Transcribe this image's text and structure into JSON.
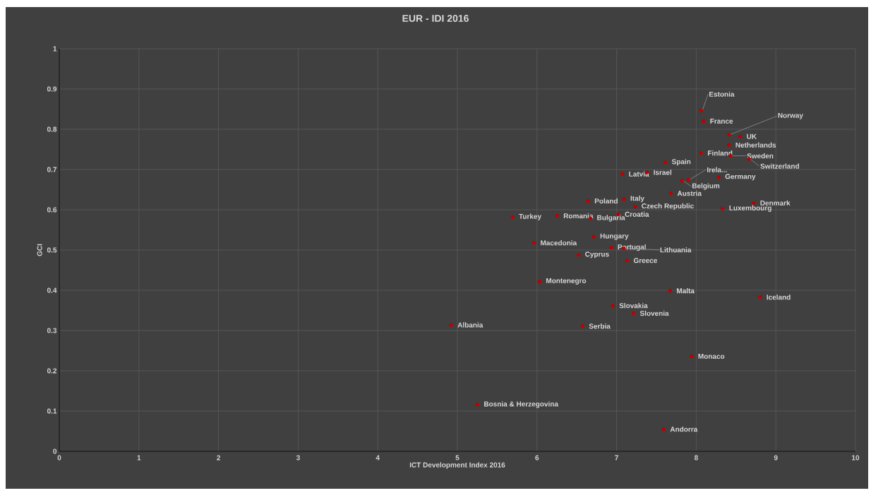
{
  "chart_data": {
    "type": "scatter",
    "title": "EUR - IDI 2016",
    "xlabel": "ICT Development Index 2016",
    "ylabel": "GCI",
    "xlim": [
      0,
      10
    ],
    "ylim": [
      0,
      1
    ],
    "xticks": [
      0,
      1,
      2,
      3,
      4,
      5,
      6,
      7,
      8,
      9,
      10
    ],
    "yticks": [
      0,
      0.1,
      0.2,
      0.3,
      0.4,
      0.5,
      0.6,
      0.7,
      0.8,
      0.9,
      1
    ],
    "grid": true,
    "series": [
      {
        "color": "#c00000",
        "x": [
          8.06,
          8.09,
          8.41,
          8.55,
          8.41,
          8.06,
          8.43,
          8.66,
          7.61,
          7.9,
          7.82,
          8.28,
          7.68,
          8.72,
          8.33,
          7.07,
          7.38,
          6.64,
          7.09,
          7.23,
          7.02,
          5.69,
          6.25,
          6.67,
          6.71,
          5.96,
          6.93,
          7.09,
          6.52,
          7.13,
          6.03,
          4.92,
          6.57,
          7.67,
          6.95,
          7.21,
          8.8,
          7.94,
          5.25,
          7.59
        ],
        "values": [
          0.847,
          0.82,
          0.787,
          0.782,
          0.761,
          0.741,
          0.734,
          0.726,
          0.718,
          0.675,
          0.672,
          0.681,
          0.641,
          0.617,
          0.603,
          0.689,
          0.693,
          0.622,
          0.627,
          0.608,
          0.589,
          0.582,
          0.585,
          0.579,
          0.533,
          0.518,
          0.506,
          0.504,
          0.488,
          0.474,
          0.422,
          0.314,
          0.311,
          0.399,
          0.362,
          0.343,
          0.383,
          0.236,
          0.116,
          0.055
        ]
      }
    ],
    "annotations": [
      {
        "text": "Estonia",
        "x": 8.06,
        "y": 0.847
      },
      {
        "text": "France",
        "x": 8.09,
        "y": 0.82
      },
      {
        "text": "Norway",
        "x": 8.41,
        "y": 0.787
      },
      {
        "text": "UK",
        "x": 8.55,
        "y": 0.782
      },
      {
        "text": "Netherlands",
        "x": 8.41,
        "y": 0.761
      },
      {
        "text": "Finland",
        "x": 8.06,
        "y": 0.741
      },
      {
        "text": "Sweden",
        "x": 8.43,
        "y": 0.734
      },
      {
        "text": "Switzerland",
        "x": 8.66,
        "y": 0.726
      },
      {
        "text": "Spain",
        "x": 7.61,
        "y": 0.718
      },
      {
        "text": "Irela...",
        "x": 7.9,
        "y": 0.675
      },
      {
        "text": "Belgium",
        "x": 7.82,
        "y": 0.672
      },
      {
        "text": "Germany",
        "x": 8.28,
        "y": 0.681
      },
      {
        "text": "Austria",
        "x": 7.68,
        "y": 0.641
      },
      {
        "text": "Denmark",
        "x": 8.72,
        "y": 0.617
      },
      {
        "text": "Luxembourg",
        "x": 8.33,
        "y": 0.603
      },
      {
        "text": "Latvia",
        "x": 7.07,
        "y": 0.689
      },
      {
        "text": "Israel",
        "x": 7.38,
        "y": 0.693
      },
      {
        "text": "Poland",
        "x": 6.64,
        "y": 0.622
      },
      {
        "text": "Italy",
        "x": 7.09,
        "y": 0.627
      },
      {
        "text": "Czech Republic",
        "x": 7.23,
        "y": 0.608
      },
      {
        "text": "Croatia",
        "x": 7.02,
        "y": 0.589
      },
      {
        "text": "Turkey",
        "x": 5.69,
        "y": 0.582
      },
      {
        "text": "Romania",
        "x": 6.25,
        "y": 0.585
      },
      {
        "text": "Bulgaria",
        "x": 6.67,
        "y": 0.579
      },
      {
        "text": "Hungary",
        "x": 6.71,
        "y": 0.533
      },
      {
        "text": "Macedonia",
        "x": 5.96,
        "y": 0.518
      },
      {
        "text": "Portugal",
        "x": 6.93,
        "y": 0.506
      },
      {
        "text": "Lithuania",
        "x": 7.09,
        "y": 0.504
      },
      {
        "text": "Cyprus",
        "x": 6.52,
        "y": 0.488
      },
      {
        "text": "Greece",
        "x": 7.13,
        "y": 0.474
      },
      {
        "text": "Montenegro",
        "x": 6.03,
        "y": 0.422
      },
      {
        "text": "Albania",
        "x": 4.92,
        "y": 0.314
      },
      {
        "text": "Serbia",
        "x": 6.57,
        "y": 0.311
      },
      {
        "text": "Malta",
        "x": 7.67,
        "y": 0.399
      },
      {
        "text": "Slovakia",
        "x": 6.95,
        "y": 0.362
      },
      {
        "text": "Slovenia",
        "x": 7.21,
        "y": 0.343
      },
      {
        "text": "Iceland",
        "x": 8.8,
        "y": 0.383
      },
      {
        "text": "Monaco",
        "x": 7.94,
        "y": 0.236
      },
      {
        "text": "Bosnia & Herzegovina",
        "x": 5.25,
        "y": 0.116
      },
      {
        "text": "Andorra",
        "x": 7.59,
        "y": 0.055
      }
    ]
  }
}
